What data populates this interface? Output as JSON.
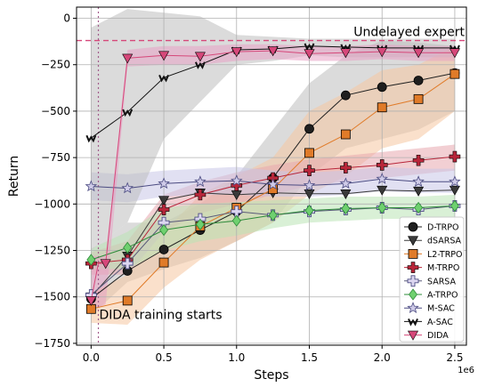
{
  "chart_data": {
    "type": "line",
    "xlabel": "Steps",
    "ylabel": "Return",
    "x_multiplier_label": "1e6",
    "xlim": [
      -0.1,
      2.58
    ],
    "ylim": [
      -1760,
      60
    ],
    "xticks": [
      0.0,
      0.5,
      1.0,
      1.5,
      2.0,
      2.5
    ],
    "xtick_labels": [
      "0.0",
      "0.5",
      "1.0",
      "1.5",
      "2.0",
      "2.5"
    ],
    "yticks": [
      0,
      -250,
      -500,
      -750,
      -1000,
      -1250,
      -1500,
      -1750
    ],
    "ytick_labels": [
      "0",
      "−250",
      "−500",
      "−750",
      "−1000",
      "−1250",
      "−1500",
      "−1750"
    ],
    "grid": true,
    "legend_position": "bottom-right",
    "reference_line": {
      "label": "Undelayed expert",
      "y": -120,
      "color": "#d6487a"
    },
    "start_marker": {
      "label": "DIDA training starts",
      "x": 0.05
    },
    "series": [
      {
        "name": "D-TRPO",
        "color": "#1f1f1f",
        "marker": "circle",
        "x": [
          0,
          0.25,
          0.5,
          0.75,
          1.0,
          1.25,
          1.5,
          1.75,
          2.0,
          2.25,
          2.5
        ],
        "values": [
          -1510,
          -1360,
          -1245,
          -1140,
          -1040,
          -860,
          -595,
          -415,
          -370,
          -335,
          -295
        ],
        "band": [
          -1600,
          -1250,
          -1420,
          -1100,
          -1350,
          -1100,
          -1290,
          -1000,
          -1200,
          -850,
          -1100,
          -600,
          -850,
          -350,
          -700,
          -200,
          -650,
          -120,
          -600,
          -130,
          -500,
          -150
        ],
        "band_color": "#bdbdbd"
      },
      {
        "name": "dSARSA",
        "color": "#3a3a3a",
        "marker": "triangle-down",
        "x": [
          0,
          0.25,
          0.5,
          0.75,
          1.0,
          1.25,
          1.5,
          1.75,
          2.0,
          2.25,
          2.5
        ],
        "values": [
          -1500,
          -1280,
          -980,
          -940,
          -950,
          -940,
          -945,
          -945,
          -925,
          -930,
          -925
        ],
        "band": [],
        "band_color": "#bdbdbd"
      },
      {
        "name": "L2-TRPO",
        "color": "#e07b29",
        "marker": "square",
        "x": [
          0,
          0.25,
          0.5,
          0.75,
          1.0,
          1.25,
          1.5,
          1.75,
          2.0,
          2.25,
          2.5
        ],
        "values": [
          -1565,
          -1520,
          -1315,
          -1120,
          -1020,
          -920,
          -725,
          -625,
          -480,
          -435,
          -300
        ],
        "band": [
          -1640,
          -1480,
          -1650,
          -1380,
          -1450,
          -1150,
          -1300,
          -950,
          -1200,
          -850,
          -1100,
          -750,
          -950,
          -500,
          -850,
          -400,
          -700,
          -280,
          -650,
          -250,
          -500,
          -150
        ],
        "band_color": "#f5c6a0"
      },
      {
        "name": "M-TRPO",
        "color": "#b8263a",
        "marker": "plus",
        "x": [
          0,
          0.25,
          0.5,
          0.75,
          1.0,
          1.25,
          1.5,
          1.75,
          2.0,
          2.25,
          2.5
        ],
        "values": [
          -1320,
          -1300,
          -1030,
          -950,
          -900,
          -860,
          -820,
          -805,
          -790,
          -765,
          -745
        ],
        "band": [
          -1380,
          -1260,
          -1380,
          -1200,
          -1150,
          -950,
          -1050,
          -880,
          -1000,
          -830,
          -950,
          -790,
          -900,
          -760,
          -880,
          -740,
          -860,
          -720,
          -840,
          -700,
          -820,
          -680
        ],
        "band_color": "#e7a7ae"
      },
      {
        "name": "SARSA",
        "color": "#5a5a7a",
        "marker": "plus-open",
        "x": [
          0,
          0.25,
          0.5,
          0.75,
          1.0,
          1.25,
          1.5,
          1.75,
          2.0,
          2.25,
          2.5
        ],
        "values": [
          -1490,
          -1320,
          -1100,
          -1080,
          -1040,
          -1060,
          -1040,
          -1030,
          -1020,
          -1030,
          -1010
        ],
        "band": [],
        "band_color": "#c9c6e8"
      },
      {
        "name": "A-TRPO",
        "color": "#2e8b3a",
        "marker": "diamond",
        "x": [
          0,
          0.25,
          0.5,
          0.75,
          1.0,
          1.25,
          1.5,
          1.75,
          2.0,
          2.25,
          2.5
        ],
        "values": [
          -1300,
          -1235,
          -1140,
          -1110,
          -1090,
          -1060,
          -1035,
          -1025,
          -1020,
          -1020,
          -1010
        ],
        "band": [
          -1350,
          -1240,
          -1350,
          -1150,
          -1250,
          -1020,
          -1200,
          -1000,
          -1170,
          -990,
          -1130,
          -980,
          -1100,
          -970,
          -1090,
          -960,
          -1080,
          -960,
          -1080,
          -960,
          -1070,
          -950
        ],
        "band_color": "#b9e3b5"
      },
      {
        "name": "M-SAC",
        "color": "#4c4c82",
        "marker": "star",
        "x": [
          0,
          0.25,
          0.5,
          0.75,
          1.0,
          1.25,
          1.5,
          1.75,
          2.0,
          2.25,
          2.5
        ],
        "values": [
          -905,
          -915,
          -890,
          -880,
          -875,
          -895,
          -900,
          -890,
          -865,
          -880,
          -880
        ],
        "band": [
          -980,
          -830,
          -990,
          -840,
          -960,
          -820,
          -950,
          -810,
          -950,
          -800,
          -960,
          -820,
          -960,
          -830,
          -950,
          -820,
          -930,
          -800,
          -940,
          -810,
          -940,
          -810
        ],
        "band_color": "#c9c6e8"
      },
      {
        "name": "A-SAC",
        "color": "#111111",
        "marker": "w",
        "x": [
          0,
          0.25,
          0.5,
          0.75,
          1.0,
          1.25,
          1.5,
          1.75,
          2.0,
          2.25,
          2.5
        ],
        "values": [
          -645,
          -505,
          -320,
          -250,
          -170,
          -165,
          -150,
          -155,
          -160,
          -160,
          -160
        ],
        "band": [
          -1250,
          -50,
          -1100,
          50,
          -650,
          30,
          -450,
          10,
          -250,
          -90,
          -230,
          -100,
          -200,
          -110,
          -210,
          -110,
          -210,
          -110,
          -210,
          -110,
          -210,
          -110
        ],
        "band_color": "#bdbdbd"
      },
      {
        "name": "DIDA",
        "color": "#d6487a",
        "marker": "triangle-down",
        "x": [
          0,
          0.05,
          0.1,
          0.25,
          0.5,
          0.75,
          1.0,
          1.25,
          1.5,
          1.75,
          2.0,
          2.25,
          2.5
        ],
        "values": [
          -1520,
          -1320,
          -1320,
          -215,
          -200,
          -205,
          -180,
          -175,
          -190,
          -185,
          -180,
          -185,
          -185
        ],
        "band": [
          -1560,
          -1280,
          -1560,
          -1280,
          -1540,
          -1280,
          -260,
          -170,
          -250,
          -150,
          -250,
          -150,
          -230,
          -140,
          -220,
          -140,
          -230,
          -150,
          -230,
          -150,
          -220,
          -140,
          -230,
          -150,
          -230,
          -150
        ],
        "band_color": "#e7a0c4"
      }
    ]
  }
}
